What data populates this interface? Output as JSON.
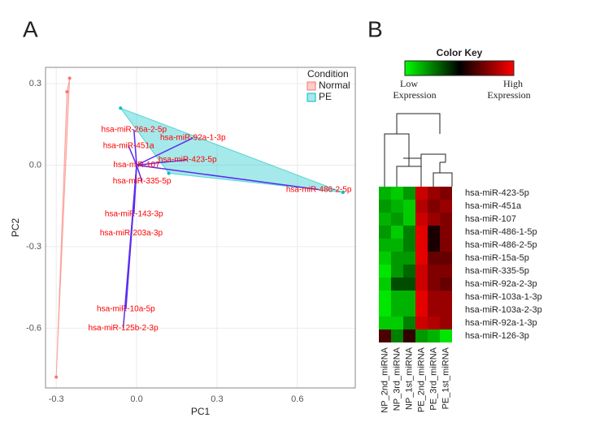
{
  "chart_data": [
    {
      "type": "biplot",
      "panel_label": "A",
      "x_label": "PC1",
      "y_label": "PC2",
      "xlim": [
        -0.34,
        0.816
      ],
      "ylim": [
        -0.82,
        0.36
      ],
      "xticks": [
        -0.3,
        {
          "value": 0,
          "label": "0.0"
        },
        0.3,
        0.6
      ],
      "yticks": [
        0.3,
        {
          "value": 0,
          "label": "0.0"
        },
        -0.3,
        -0.6
      ],
      "grid": true,
      "legend_title": "Condition",
      "legend_position": "top-right",
      "series": [
        {
          "name": "Normal",
          "color": "#f8766d",
          "x": [
            -0.25,
            -0.26,
            -0.3
          ],
          "y": [
            0.32,
            0.27,
            -0.78
          ]
        },
        {
          "name": "PE",
          "color": "#00bfc4",
          "x": [
            -0.06,
            0.77,
            0.12
          ],
          "y": [
            0.21,
            -0.1,
            -0.03
          ]
        }
      ],
      "loadings": {
        "color": "#5a2df0",
        "label_color": "#ff0000",
        "labels": [
          "hsa-miR-26a-2-5p",
          "hsa-miR-92a-1-3p",
          "hsa-miR-423-5p",
          "hsa-miR-486-2-5p",
          "hsa-miR-143-3p",
          "hsa-miR-203a-3p",
          "hsa-miR-10a-5p",
          "hsa-miR-125b-2-3p",
          "hsa-miR-451a",
          "hsa-miR-107",
          "hsa-miR-335-5p"
        ],
        "x": [
          -0.01,
          0.21,
          0.19,
          0.68,
          -0.01,
          -0.02,
          -0.04,
          -0.05,
          -0.03,
          0.0,
          0.02
        ],
        "y": [
          0.13,
          0.1,
          0.02,
          -0.09,
          -0.18,
          -0.25,
          -0.53,
          -0.6,
          0.07,
          0.0,
          -0.06
        ]
      }
    },
    {
      "type": "heatmap",
      "panel_label": "B",
      "categories": [
        "NP_2nd_miRNA",
        "NP_3rd_miRNA",
        "NP_1st_miRNA",
        "PE_2nd_miRNA",
        "PE_3rd_miRNA",
        "PE_1st_miRNA"
      ],
      "rows": [
        "hsa-miR-423-5p",
        "hsa-miR-451a",
        "hsa-miR-107",
        "hsa-miR-486-1-5p",
        "hsa-miR-486-2-5p",
        "hsa-miR-15a-5p",
        "hsa-miR-335-5p",
        "hsa-miR-92a-2-3p",
        "hsa-miR-103a-1-3p",
        "hsa-miR-103a-2-3p",
        "hsa-miR-92a-1-3p",
        "hsa-miR-126-3p"
      ],
      "values": [
        [
          -0.7,
          -0.8,
          -0.6,
          0.8,
          0.6,
          0.5
        ],
        [
          -0.6,
          -0.7,
          -0.8,
          0.7,
          0.5,
          0.6
        ],
        [
          -0.7,
          -0.6,
          -0.8,
          0.8,
          0.6,
          0.5
        ],
        [
          -0.6,
          -0.8,
          -0.5,
          0.9,
          0.1,
          0.5
        ],
        [
          -0.7,
          -0.7,
          -0.5,
          0.9,
          0.1,
          0.5
        ],
        [
          -0.8,
          -0.6,
          -0.6,
          0.9,
          0.4,
          0.4
        ],
        [
          -0.9,
          -0.6,
          -0.4,
          0.8,
          0.5,
          0.5
        ],
        [
          -0.8,
          -0.3,
          -0.3,
          0.8,
          0.5,
          0.4
        ],
        [
          -0.9,
          -0.7,
          -0.7,
          0.9,
          0.6,
          0.6
        ],
        [
          -0.9,
          -0.7,
          -0.7,
          0.9,
          0.6,
          0.6
        ],
        [
          -0.8,
          -0.8,
          -0.5,
          0.8,
          0.7,
          0.6
        ],
        [
          0.3,
          -0.5,
          0.2,
          -0.6,
          -0.7,
          -0.9
        ]
      ],
      "zlim": [
        -1,
        1
      ],
      "low_color": "#00ff00",
      "mid_color": "#000000",
      "high_color": "#ff0000",
      "color_key": {
        "title": "Color Key",
        "low_label": [
          "Low",
          "Expression"
        ],
        "high_label": [
          "High",
          "Expression"
        ]
      }
    }
  ]
}
